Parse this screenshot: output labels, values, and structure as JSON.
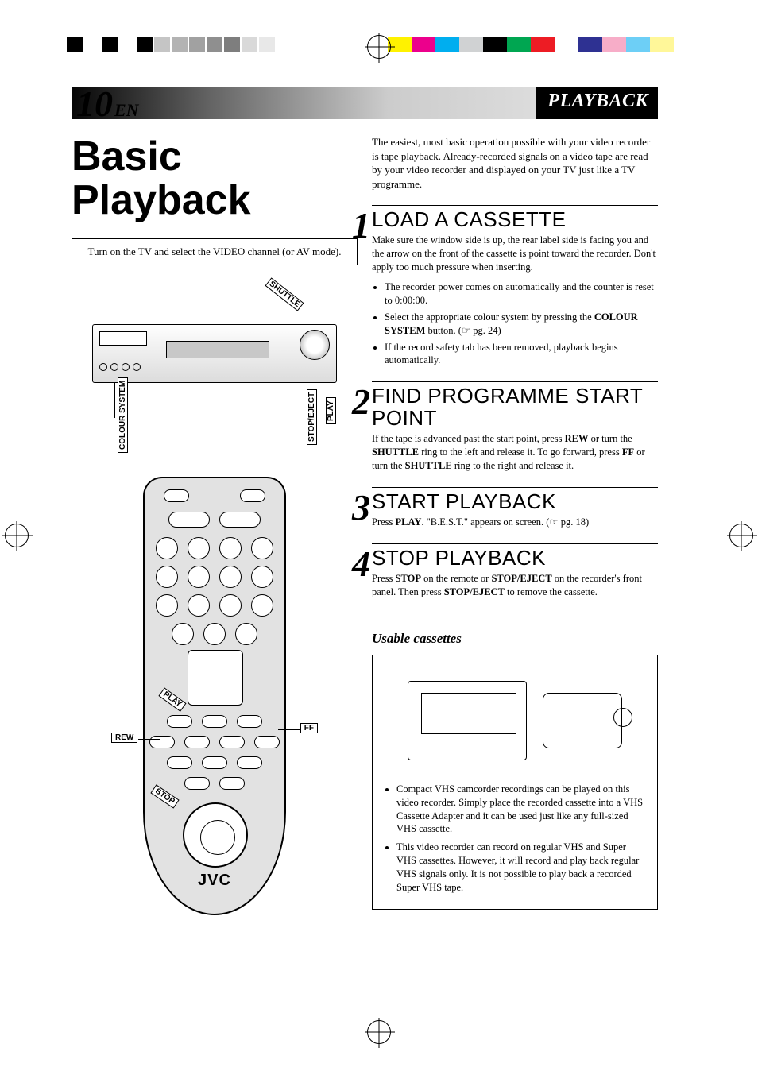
{
  "page": {
    "number": "10",
    "lang": "EN",
    "section": "PLAYBACK"
  },
  "title_line1": "Basic",
  "title_line2": "Playback",
  "note": "Turn on the TV and select the VIDEO channel (or AV mode).",
  "reg_marks": {
    "left_colors": [
      "#000000",
      "#ffffff",
      "#000000",
      "#ffffff",
      "#000000",
      "#c5c5c5",
      "#b3b3b3",
      "#a1a1a1",
      "#8f8f8f",
      "#7e7e7e",
      "#d9d9d9",
      "#e8e8e8"
    ],
    "right_colors": [
      "#fff200",
      "#ec008c",
      "#00aeef",
      "#d0d2d3",
      "#000000",
      "#00a651",
      "#ed1c24",
      "#ffffff",
      "#2e3192",
      "#f7adc8",
      "#6dcff6",
      "#fff799"
    ]
  },
  "vcr": {
    "shuttle_label": "SHUTTLE",
    "callouts": {
      "colour_system": "COLOUR SYSTEM",
      "stop_eject": "STOP/EJECT",
      "play": "PLAY"
    },
    "brand": "JVC"
  },
  "remote": {
    "brand": "JVC",
    "labels": {
      "rew": "REW",
      "ff": "FF",
      "play": "PLAY",
      "stop": "STOP"
    }
  },
  "intro": "The easiest, most basic operation possible with your video recorder is tape playback. Already-recorded signals on a video tape are read by your video recorder and displayed on your TV just like a TV programme.",
  "steps": [
    {
      "num": "1",
      "title": "LOAD A CASSETTE",
      "body": "Make sure the window side is up, the rear label side is facing you and the arrow on the front of the cassette is point toward the recorder. Don't apply too much pressure when inserting.",
      "bullets": [
        "The recorder power comes on automatically and the counter is reset to 0:00:00.",
        "Select the appropriate colour system by pressing the <b>COLOUR SYSTEM</b> button. (☞ pg. 24)",
        "If the record safety tab has been removed, playback begins automatically."
      ]
    },
    {
      "num": "2",
      "title": "FIND PROGRAMME START POINT",
      "body": "If the tape is advanced past the start point, press <b>REW</b> or turn the <b>SHUTTLE</b> ring to the left and release it. To go forward, press <b>FF</b> or turn the <b>SHUTTLE</b> ring to the right and release it."
    },
    {
      "num": "3",
      "title": "START PLAYBACK",
      "body": "Press <b>PLAY</b>. \"B.E.S.T.\" appears on screen. (☞ pg. 18)"
    },
    {
      "num": "4",
      "title": "STOP PLAYBACK",
      "body": "Press <b>STOP</b> on the remote or <b>STOP/EJECT</b> on the recorder's front panel. Then press <b>STOP/EJECT</b> to remove the cassette."
    }
  ],
  "usable": {
    "heading": "Usable cassettes",
    "bullets": [
      "Compact VHS camcorder recordings can be played on this video recorder. Simply place the recorded cassette into a VHS Cassette Adapter and it can be used just like any full-sized VHS cassette.",
      "This video recorder can record on regular VHS and Super VHS cassettes. However, it will record and play back regular VHS signals only. It is not possible to play back a recorded Super VHS tape."
    ]
  }
}
